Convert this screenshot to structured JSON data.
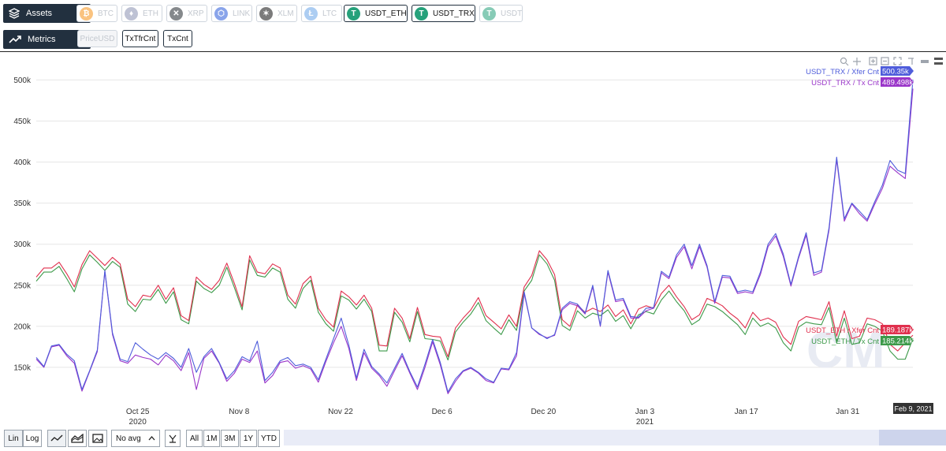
{
  "top_bar": {
    "assets_label": "Assets",
    "metrics_label": "Metrics",
    "assets": [
      {
        "label": "BTC",
        "active": false,
        "icon": "bitcoin-icon",
        "color": "#f7931a",
        "glyph": "₿"
      },
      {
        "label": "ETH",
        "active": false,
        "icon": "ethereum-icon",
        "color": "#8a92b2",
        "glyph": "♦"
      },
      {
        "label": "XRP",
        "active": false,
        "icon": "xrp-icon",
        "color": "#23292f",
        "glyph": "✕"
      },
      {
        "label": "LINK",
        "active": false,
        "icon": "chainlink-icon",
        "color": "#2a5ada",
        "glyph": "⬡"
      },
      {
        "label": "XLM",
        "active": false,
        "icon": "stellar-icon",
        "color": "#111111",
        "glyph": "✶"
      },
      {
        "label": "LTC",
        "active": false,
        "icon": "litecoin-icon",
        "color": "#6aa5e8",
        "glyph": "Ł"
      },
      {
        "label": "USDT_ETH",
        "active": true,
        "icon": "tether-icon",
        "color": "#26a17b",
        "glyph": "T"
      },
      {
        "label": "USDT_TRX",
        "active": true,
        "icon": "tether-icon",
        "color": "#26a17b",
        "glyph": "T"
      },
      {
        "label": "USDT",
        "active": false,
        "icon": "tether-icon",
        "color": "#26a17b",
        "glyph": "T"
      }
    ],
    "metrics": [
      {
        "label": "PriceUSD",
        "active": false
      },
      {
        "label": "TxTfrCnt",
        "active": true
      },
      {
        "label": "TxCnt",
        "active": true
      }
    ]
  },
  "toolbar_icons": [
    "zoom-in-icon",
    "pan-icon",
    "zoom-box-icon",
    "zoom-out-box-icon",
    "autoscale-icon",
    "spike-lines-icon",
    "hover-closest-icon",
    "hover-compare-icon"
  ],
  "bottom_bar": {
    "scale_options": [
      "Lin",
      "Log"
    ],
    "chart_style_icons": [
      "line-chart-icon",
      "area-chart-icon",
      "image-icon"
    ],
    "avg_select": "No avg",
    "ranges": [
      "All",
      "1M",
      "3M",
      "1Y",
      "YTD"
    ]
  },
  "hover_date": "Feb 9, 2021",
  "colors": {
    "usdt_trx_xfer": "#4f5ddb",
    "usdt_trx_tx": "#9a35c9",
    "usdt_eth_xfer": "#e0304e",
    "usdt_eth_tx": "#3d9a4a"
  },
  "chart_data": {
    "type": "line",
    "x_start": "2020-10-11",
    "x_end": "2021-02-09",
    "x_ticks": [
      {
        "label": "Oct 25",
        "date": "2020-10-25",
        "year": "2020"
      },
      {
        "label": "Nov 8",
        "date": "2020-11-08"
      },
      {
        "label": "Nov 22",
        "date": "2020-11-22"
      },
      {
        "label": "Dec 6",
        "date": "2020-12-06"
      },
      {
        "label": "Dec 20",
        "date": "2020-12-20"
      },
      {
        "label": "Jan 3",
        "date": "2021-01-03",
        "year": "2021"
      },
      {
        "label": "Jan 17",
        "date": "2021-01-17"
      },
      {
        "label": "Jan 31",
        "date": "2021-01-31"
      }
    ],
    "y_ticks": [
      "150k",
      "200k",
      "250k",
      "300k",
      "350k",
      "400k",
      "450k",
      "500k"
    ],
    "ylim": [
      100000,
      510000
    ],
    "grid": true,
    "series": [
      {
        "name": "USDT_TRX / Xfer Cnt",
        "last_label": "500.35k",
        "color": "#4f5ddb",
        "values": [
          162,
          151,
          176,
          178,
          166,
          158,
          123,
          146,
          171,
          268,
          192,
          160,
          157,
          180,
          172,
          165,
          160,
          168,
          161,
          150,
          173,
          144,
          163,
          173,
          156,
          136,
          146,
          163,
          158,
          182,
          134,
          144,
          158,
          162,
          152,
          154,
          150,
          135,
          160,
          185,
          210,
          177,
          137,
          172,
          151,
          142,
          131,
          149,
          167,
          145,
          126,
          154,
          184,
          156,
          120,
          136,
          146,
          150,
          144,
          136,
          132,
          149,
          148,
          168,
          242,
          198,
          191,
          185,
          190,
          222,
          230,
          227,
          216,
          250,
          201,
          268,
          232,
          234,
          212,
          211,
          222,
          223,
          267,
          260,
          287,
          300,
          274,
          300,
          274,
          230,
          262,
          261,
          242,
          244,
          242,
          266,
          300,
          313,
          288,
          251,
          285,
          314,
          265,
          268,
          320,
          406,
          331,
          350,
          340,
          330,
          352,
          372,
          402,
          390,
          386,
          500.35
        ]
      },
      {
        "name": "USDT_TRX / Tx Cnt",
        "last_label": "489.498k",
        "color": "#9a35c9",
        "values": [
          160,
          150,
          175,
          177,
          164,
          155,
          121,
          145,
          169,
          267,
          190,
          158,
          155,
          165,
          162,
          160,
          153,
          165,
          158,
          146,
          168,
          123,
          161,
          170,
          155,
          133,
          143,
          160,
          156,
          170,
          131,
          140,
          156,
          158,
          149,
          152,
          148,
          132,
          157,
          180,
          200,
          173,
          134,
          168,
          149,
          140,
          127,
          146,
          164,
          143,
          123,
          150,
          181,
          153,
          118,
          133,
          145,
          149,
          143,
          134,
          131,
          148,
          147,
          164,
          240,
          198,
          190,
          186,
          189,
          220,
          228,
          225,
          215,
          248,
          200,
          266,
          230,
          232,
          210,
          210,
          219,
          222,
          265,
          258,
          284,
          297,
          270,
          297,
          272,
          228,
          260,
          259,
          240,
          242,
          240,
          263,
          297,
          310,
          285,
          249,
          283,
          311,
          262,
          266,
          317,
          403,
          328,
          349,
          337,
          328,
          349,
          368,
          395,
          387,
          380,
          489.498
        ]
      },
      {
        "name": "USDT_ETH / Xfer Cnt",
        "last_label": "189.187k",
        "color": "#e0304e",
        "values": [
          260,
          271,
          271,
          278,
          264,
          248,
          275,
          292,
          283,
          274,
          284,
          276,
          233,
          224,
          238,
          236,
          250,
          233,
          247,
          213,
          207,
          260,
          251,
          245,
          256,
          277,
          252,
          224,
          286,
          266,
          264,
          276,
          271,
          238,
          227,
          252,
          261,
          222,
          208,
          199,
          243,
          236,
          226,
          238,
          222,
          177,
          176,
          222,
          210,
          185,
          223,
          190,
          188,
          187,
          163,
          198,
          210,
          220,
          235,
          213,
          205,
          197,
          214,
          200,
          248,
          262,
          292,
          281,
          263,
          208,
          200,
          226,
          217,
          222,
          218,
          226,
          212,
          220,
          203,
          221,
          225,
          222,
          240,
          250,
          236,
          224,
          208,
          214,
          234,
          230,
          225,
          216,
          209,
          198,
          217,
          207,
          210,
          205,
          187,
          178,
          206,
          212,
          210,
          208,
          230,
          188,
          219,
          185,
          188,
          210,
          208,
          203,
          178,
          170,
          180,
          189.187
        ]
      },
      {
        "name": "USDT_ETH / Tx Cnt",
        "last_label": "185.214k",
        "color": "#3d9a4a",
        "values": [
          255,
          266,
          266,
          273,
          258,
          242,
          270,
          287,
          278,
          268,
          279,
          272,
          227,
          218,
          233,
          232,
          245,
          228,
          242,
          208,
          203,
          255,
          246,
          241,
          250,
          272,
          247,
          220,
          281,
          262,
          260,
          271,
          266,
          233,
          222,
          246,
          256,
          217,
          203,
          194,
          237,
          232,
          221,
          233,
          218,
          170,
          170,
          217,
          205,
          181,
          218,
          185,
          184,
          182,
          159,
          193,
          205,
          215,
          229,
          207,
          198,
          190,
          208,
          195,
          243,
          256,
          287,
          276,
          256,
          201,
          195,
          219,
          210,
          216,
          213,
          220,
          206,
          213,
          197,
          214,
          218,
          215,
          232,
          243,
          230,
          219,
          202,
          208,
          227,
          224,
          218,
          210,
          202,
          190,
          210,
          200,
          204,
          198,
          180,
          170,
          199,
          205,
          203,
          202,
          223,
          180,
          210,
          178,
          180,
          203,
          200,
          194,
          170,
          160,
          160,
          185.214
        ]
      }
    ]
  }
}
